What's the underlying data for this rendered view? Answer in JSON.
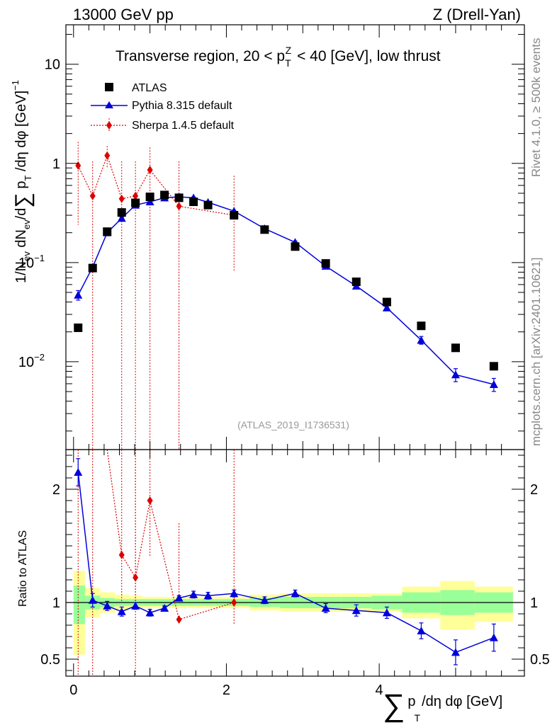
{
  "header": {
    "energy": "13000 GeV pp",
    "process": "Z (Drell-Yan)"
  },
  "side": {
    "rivet": "Rivet 4.1.0, ≥ 500k events",
    "mcplots": "mcplots.cern.ch [arXiv:2401.10621]"
  },
  "colors": {
    "atlas": "#000000",
    "pythia": "#0000dd",
    "sherpa": "#dd0000",
    "band_outer": "#ffff99",
    "band_inner": "#99ff99"
  },
  "chart_data": [
    {
      "type": "scatter",
      "name": "main",
      "title": "Transverse region, 20 < pT Z < 40 [GeV], low thrust",
      "ylabel": "1/Nev dNev/d∑pT /dη dφ [GeV]^-1",
      "xlabel": "∑ pT /dη dφ [GeV]",
      "yscale": "log",
      "ylim": [
        0.0013,
        25
      ],
      "xlim": [
        -0.1,
        5.9
      ],
      "watermark": "(ATLAS_2019_I1736531)",
      "y_ticks": [
        {
          "value": 10,
          "label": "10"
        },
        {
          "value": 1,
          "label": "1"
        },
        {
          "value": 0.1,
          "base": "10",
          "exp": "−1"
        },
        {
          "value": 0.01,
          "base": "10",
          "exp": "−2"
        }
      ],
      "legend": [
        {
          "key": "atlas",
          "label": "ATLAS"
        },
        {
          "key": "pythia",
          "label": "Pythia 8.315 default"
        },
        {
          "key": "sherpa",
          "label": "Sherpa 1.4.5 default"
        }
      ],
      "series": {
        "atlas": {
          "x": [
            0.06,
            0.25,
            0.44,
            0.63,
            0.81,
            1.0,
            1.19,
            1.38,
            1.57,
            1.76,
            2.1,
            2.5,
            2.9,
            3.3,
            3.7,
            4.1,
            4.55,
            5.0,
            5.5
          ],
          "y": [
            0.022,
            0.088,
            0.205,
            0.32,
            0.4,
            0.46,
            0.48,
            0.45,
            0.41,
            0.38,
            0.3,
            0.215,
            0.145,
            0.098,
            0.064,
            0.04,
            0.023,
            0.0138,
            0.009
          ]
        },
        "pythia": {
          "x": [
            0.06,
            0.25,
            0.44,
            0.63,
            0.81,
            1.0,
            1.19,
            1.38,
            1.57,
            1.76,
            2.1,
            2.5,
            2.9,
            3.3,
            3.7,
            4.1,
            4.55,
            5.0,
            5.5
          ],
          "y": [
            0.047,
            0.09,
            0.2,
            0.28,
            0.38,
            0.41,
            0.45,
            0.46,
            0.45,
            0.405,
            0.33,
            0.22,
            0.16,
            0.092,
            0.058,
            0.035,
            0.0165,
            0.0074,
            0.0059
          ],
          "err": [
            0.11,
            0.03,
            0.03,
            0.03,
            0.02,
            0.02,
            0.02,
            0.02,
            0.02,
            0.02,
            0.02,
            0.02,
            0.03,
            0.03,
            0.03,
            0.05,
            0.09,
            0.15,
            0.15
          ]
        },
        "sherpa": {
          "x": [
            0.06,
            0.25,
            0.44,
            0.63,
            0.81,
            1.0,
            1.38,
            2.1
          ],
          "y": [
            0.95,
            0.47,
            1.2,
            0.44,
            0.47,
            0.86,
            0.37,
            0.3
          ],
          "err_lo": [
            0.24,
            0.0005,
            0.9,
            0.0005,
            0.0005,
            0.001,
            0.0005,
            0.08
          ],
          "err_hi": [
            1.65,
            1.05,
            1.5,
            1.05,
            1.05,
            1.45,
            1.05,
            0.75
          ]
        }
      }
    },
    {
      "type": "scatter",
      "name": "ratio",
      "ylabel": "Ratio to ATLAS",
      "ylim": [
        0.35,
        2.35
      ],
      "xlim": [
        -0.1,
        5.9
      ],
      "y_ticks": [
        0.5,
        1,
        2
      ],
      "x_ticks": [
        0,
        2,
        4
      ],
      "bands": {
        "edges": [
          0,
          0.15,
          0.35,
          0.54,
          0.73,
          0.9,
          1.1,
          1.28,
          1.48,
          1.66,
          1.85,
          2.3,
          2.7,
          3.1,
          3.5,
          3.9,
          4.3,
          4.8,
          5.25,
          5.75
        ],
        "inner": [
          [
            0.81,
            1.15
          ],
          [
            0.94,
            1.06
          ],
          [
            0.96,
            1.04
          ],
          [
            0.97,
            1.03
          ],
          [
            0.97,
            1.03
          ],
          [
            0.97,
            1.03
          ],
          [
            0.97,
            1.03
          ],
          [
            0.97,
            1.03
          ],
          [
            0.97,
            1.03
          ],
          [
            0.97,
            1.03
          ],
          [
            0.97,
            1.03
          ],
          [
            0.96,
            1.04
          ],
          [
            0.95,
            1.05
          ],
          [
            0.95,
            1.05
          ],
          [
            0.95,
            1.05
          ],
          [
            0.94,
            1.06
          ],
          [
            0.91,
            1.09
          ],
          [
            0.89,
            1.11
          ],
          [
            0.91,
            1.09
          ]
        ],
        "outer": [
          [
            0.54,
            1.28
          ],
          [
            0.87,
            1.13
          ],
          [
            0.91,
            1.09
          ],
          [
            0.93,
            1.07
          ],
          [
            0.94,
            1.06
          ],
          [
            0.95,
            1.05
          ],
          [
            0.95,
            1.05
          ],
          [
            0.95,
            1.05
          ],
          [
            0.95,
            1.05
          ],
          [
            0.95,
            1.05
          ],
          [
            0.95,
            1.05
          ],
          [
            0.93,
            1.07
          ],
          [
            0.92,
            1.08
          ],
          [
            0.92,
            1.08
          ],
          [
            0.92,
            1.08
          ],
          [
            0.92,
            1.08
          ],
          [
            0.86,
            1.14
          ],
          [
            0.76,
            1.19
          ],
          [
            0.83,
            1.14
          ]
        ]
      },
      "pythia": {
        "x": [
          0.06,
          0.25,
          0.44,
          0.63,
          0.81,
          1.0,
          1.19,
          1.38,
          1.57,
          1.76,
          2.1,
          2.5,
          2.9,
          3.3,
          3.7,
          4.1,
          4.55,
          5.0,
          5.5
        ],
        "y": [
          2.15,
          1.02,
          0.97,
          0.92,
          0.97,
          0.91,
          0.95,
          1.04,
          1.07,
          1.06,
          1.08,
          1.02,
          1.08,
          0.95,
          0.93,
          0.91,
          0.75,
          0.56,
          0.69
        ],
        "err": [
          0.12,
          0.06,
          0.04,
          0.04,
          0.03,
          0.03,
          0.02,
          0.02,
          0.03,
          0.03,
          0.03,
          0.03,
          0.03,
          0.04,
          0.05,
          0.05,
          0.07,
          0.11,
          0.12
        ]
      },
      "sherpa": {
        "x": [
          0.63,
          0.81,
          1.0,
          1.38,
          2.1
        ],
        "y": [
          1.42,
          1.22,
          1.9,
          0.85,
          1.0
        ],
        "err_lo": [
          1.0,
          1.0,
          1.4,
          1.0,
          0.8
        ],
        "err_hi": [
          2.8,
          2.7,
          3.0,
          1.7,
          2.4
        ]
      }
    }
  ]
}
